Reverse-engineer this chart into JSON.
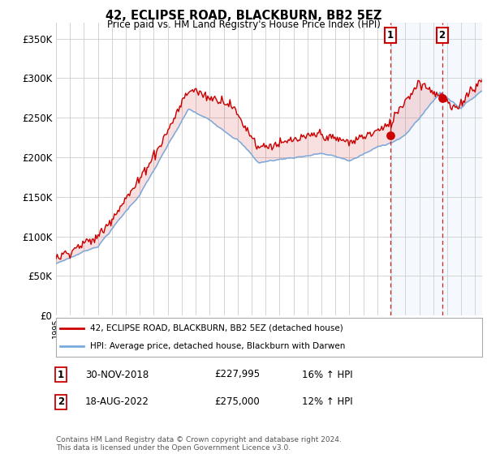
{
  "title": "42, ECLIPSE ROAD, BLACKBURN, BB2 5EZ",
  "subtitle": "Price paid vs. HM Land Registry's House Price Index (HPI)",
  "ytick_values": [
    0,
    50000,
    100000,
    150000,
    200000,
    250000,
    300000,
    350000
  ],
  "ylim": [
    0,
    370000
  ],
  "hpi_color": "#7aaadd",
  "price_color": "#cc0000",
  "fill_between_color": "#cce0f5",
  "legend_label1": "42, ECLIPSE ROAD, BLACKBURN, BB2 5EZ (detached house)",
  "legend_label2": "HPI: Average price, detached house, Blackburn with Darwen",
  "note1_num": "1",
  "note1_date": "30-NOV-2018",
  "note1_price": "£227,995",
  "note1_hpi": "16% ↑ HPI",
  "note2_num": "2",
  "note2_date": "18-AUG-2022",
  "note2_price": "£275,000",
  "note2_hpi": "12% ↑ HPI",
  "footnote": "Contains HM Land Registry data © Crown copyright and database right 2024.\nThis data is licensed under the Open Government Licence v3.0.",
  "marker1_x": 2018.917,
  "marker1_y": 227995,
  "marker2_x": 2022.633,
  "marker2_y": 275000,
  "dashed_line1_x": 2018.917,
  "dashed_line2_x": 2022.633,
  "xlim_left": 1995,
  "xlim_right": 2025.5
}
